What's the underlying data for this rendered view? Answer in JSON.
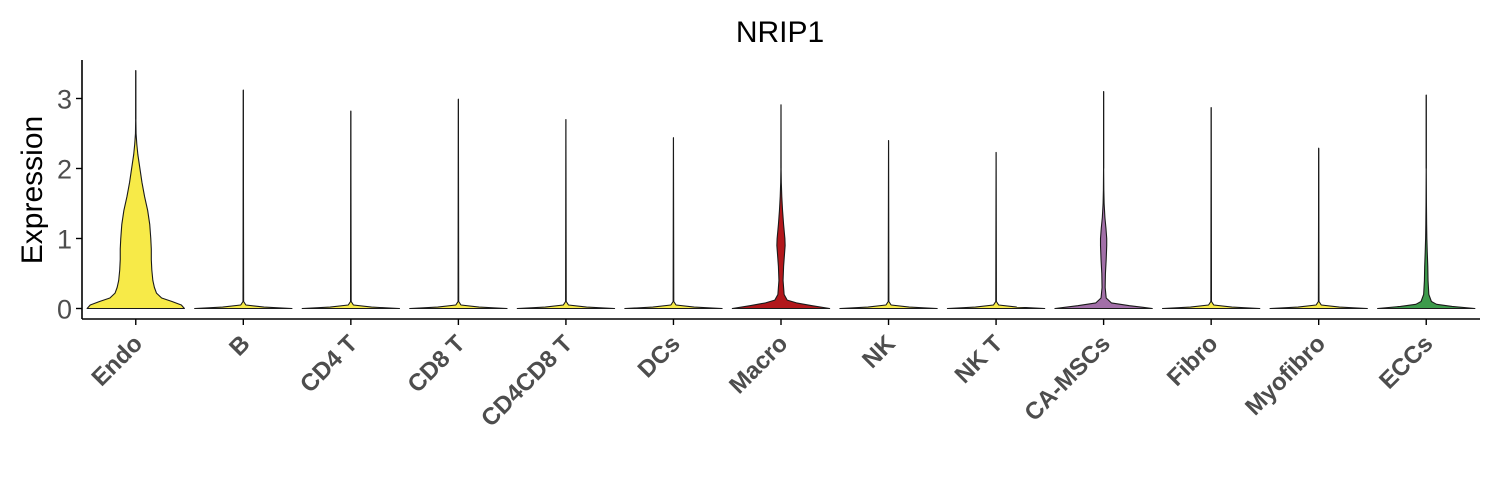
{
  "chart_data": {
    "type": "violin",
    "title": "NRIP1",
    "xlabel": "",
    "ylabel": "Expression",
    "ylim": [
      -0.15,
      3.55
    ],
    "yticks": [
      0,
      1,
      2,
      3
    ],
    "grid": false,
    "legend": "none",
    "categories": [
      "Endo",
      "B",
      "CD4 T",
      "CD8 T",
      "CD4CD8 T",
      "DCs",
      "Macro",
      "NK",
      "NK T",
      "CA-MSCs",
      "Fibro",
      "Myofibro",
      "ECCs"
    ],
    "colors": [
      "#F7EA48",
      "#F7EA48",
      "#F7EA48",
      "#F7EA48",
      "#F7EA48",
      "#F7EA48",
      "#B2171B",
      "#F7EA48",
      "#F7EA48",
      "#A26FA8",
      "#F7EA48",
      "#F7EA48",
      "#3D9B4B"
    ],
    "max_values": [
      3.4,
      3.12,
      2.82,
      2.99,
      2.7,
      2.44,
      2.91,
      2.4,
      2.23,
      3.1,
      2.87,
      2.29,
      3.05
    ],
    "density_profiles": [
      [
        [
          0,
          0.94
        ],
        [
          0.05,
          0.88
        ],
        [
          0.1,
          0.7
        ],
        [
          0.15,
          0.5
        ],
        [
          0.22,
          0.4
        ],
        [
          0.3,
          0.36
        ],
        [
          0.4,
          0.33
        ],
        [
          0.55,
          0.31
        ],
        [
          0.7,
          0.3
        ],
        [
          0.85,
          0.3
        ],
        [
          1.0,
          0.29
        ],
        [
          1.2,
          0.27
        ],
        [
          1.4,
          0.23
        ],
        [
          1.6,
          0.17
        ],
        [
          1.8,
          0.12
        ],
        [
          1.95,
          0.09
        ],
        [
          2.1,
          0.06
        ],
        [
          2.2,
          0.04
        ],
        [
          2.35,
          0.02
        ],
        [
          2.5,
          0.006
        ],
        [
          2.7,
          0.002
        ],
        [
          3.4,
          0
        ]
      ],
      [
        [
          0,
          0.94
        ],
        [
          0.02,
          0.4
        ],
        [
          0.05,
          0.05
        ],
        [
          0.1,
          0.006
        ],
        [
          3.12,
          0
        ]
      ],
      [
        [
          0,
          0.94
        ],
        [
          0.02,
          0.4
        ],
        [
          0.05,
          0.05
        ],
        [
          0.1,
          0.006
        ],
        [
          2.82,
          0
        ]
      ],
      [
        [
          0,
          0.94
        ],
        [
          0.02,
          0.4
        ],
        [
          0.05,
          0.05
        ],
        [
          0.1,
          0.006
        ],
        [
          2.99,
          0
        ]
      ],
      [
        [
          0,
          0.94
        ],
        [
          0.02,
          0.4
        ],
        [
          0.05,
          0.05
        ],
        [
          0.1,
          0.006
        ],
        [
          2.7,
          0
        ]
      ],
      [
        [
          0,
          0.94
        ],
        [
          0.02,
          0.4
        ],
        [
          0.05,
          0.05
        ],
        [
          0.1,
          0.006
        ],
        [
          2.44,
          0
        ]
      ],
      [
        [
          0,
          0.94
        ],
        [
          0.04,
          0.6
        ],
        [
          0.08,
          0.3
        ],
        [
          0.12,
          0.12
        ],
        [
          0.2,
          0.06
        ],
        [
          0.4,
          0.04
        ],
        [
          0.6,
          0.05
        ],
        [
          0.8,
          0.07
        ],
        [
          0.9,
          0.08
        ],
        [
          1.0,
          0.075
        ],
        [
          1.2,
          0.05
        ],
        [
          1.4,
          0.03
        ],
        [
          1.6,
          0.015
        ],
        [
          1.8,
          0.006
        ],
        [
          2.0,
          0.002
        ],
        [
          2.91,
          0
        ]
      ],
      [
        [
          0,
          0.94
        ],
        [
          0.02,
          0.4
        ],
        [
          0.05,
          0.05
        ],
        [
          0.1,
          0.006
        ],
        [
          2.4,
          0
        ]
      ],
      [
        [
          0,
          0.94
        ],
        [
          0.02,
          0.4
        ],
        [
          0.05,
          0.05
        ],
        [
          0.1,
          0.006
        ],
        [
          2.23,
          0
        ]
      ],
      [
        [
          0,
          0.94
        ],
        [
          0.04,
          0.5
        ],
        [
          0.08,
          0.15
        ],
        [
          0.15,
          0.05
        ],
        [
          0.3,
          0.03
        ],
        [
          0.5,
          0.035
        ],
        [
          0.7,
          0.05
        ],
        [
          0.9,
          0.06
        ],
        [
          1.0,
          0.06
        ],
        [
          1.15,
          0.045
        ],
        [
          1.3,
          0.025
        ],
        [
          1.5,
          0.01
        ],
        [
          1.7,
          0.004
        ],
        [
          2.0,
          0.001
        ],
        [
          3.1,
          0
        ]
      ],
      [
        [
          0,
          0.94
        ],
        [
          0.02,
          0.4
        ],
        [
          0.05,
          0.05
        ],
        [
          0.1,
          0.006
        ],
        [
          2.87,
          0
        ]
      ],
      [
        [
          0,
          0.94
        ],
        [
          0.02,
          0.4
        ],
        [
          0.05,
          0.05
        ],
        [
          0.1,
          0.006
        ],
        [
          2.29,
          0
        ]
      ],
      [
        [
          0,
          0.94
        ],
        [
          0.03,
          0.5
        ],
        [
          0.06,
          0.2
        ],
        [
          0.1,
          0.1
        ],
        [
          0.2,
          0.05
        ],
        [
          0.4,
          0.035
        ],
        [
          0.6,
          0.03
        ],
        [
          0.8,
          0.02
        ],
        [
          1.0,
          0.012
        ],
        [
          1.2,
          0.008
        ],
        [
          1.5,
          0.004
        ],
        [
          2.0,
          0.001
        ],
        [
          3.05,
          0
        ]
      ]
    ]
  }
}
